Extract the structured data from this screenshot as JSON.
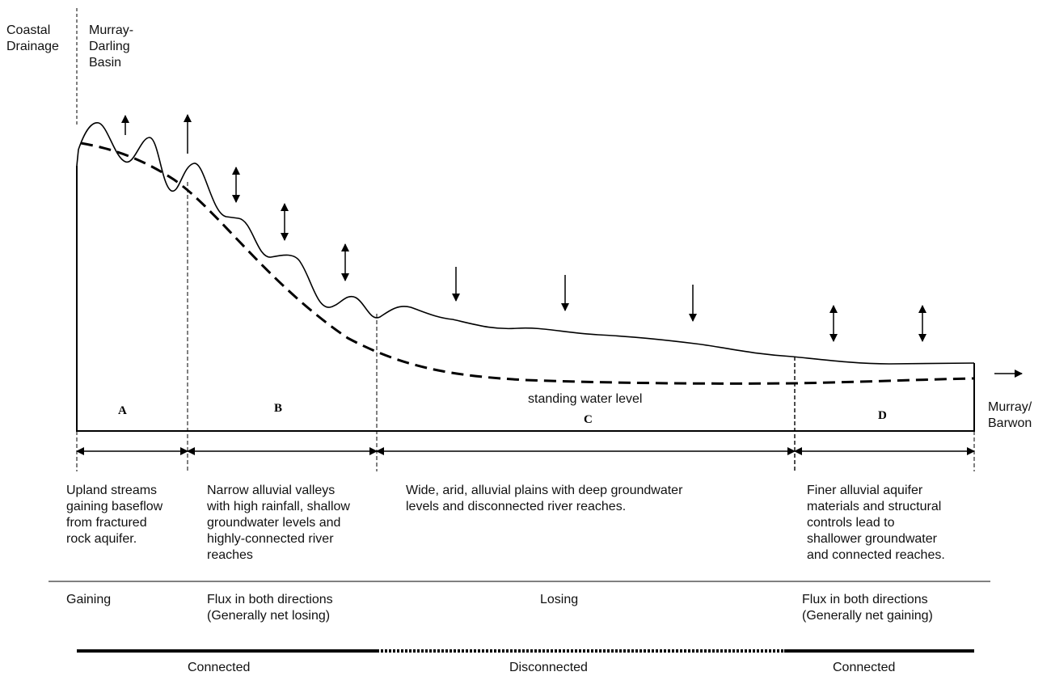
{
  "header": {
    "coastal": "Coastal\nDrainage",
    "basin": "Murray-\nDarling\nBasin"
  },
  "outlet": "Murray/\nBarwon",
  "standing_water": "standing water level",
  "zones": [
    "A",
    "B",
    "C",
    "D"
  ],
  "descriptions": [
    "Upland streams\ngaining baseflow\nfrom fractured\nrock aquifer.",
    "Narrow alluvial valleys\nwith high rainfall, shallow\ngroundwater levels and\nhighly-connected river\nreaches",
    "Wide, arid, alluvial plains with deep groundwater\nlevels and disconnected river reaches.",
    "Finer alluvial aquifer\nmaterials and structural\ncontrols lead to\nshallower groundwater\nand connected reaches."
  ],
  "flux": [
    "Gaining",
    "Flux in both directions\n(Generally net losing)",
    "Losing",
    "Flux in both directions\n(Generally net gaining)"
  ],
  "connection": [
    "Connected",
    "Disconnected",
    "Connected"
  ]
}
